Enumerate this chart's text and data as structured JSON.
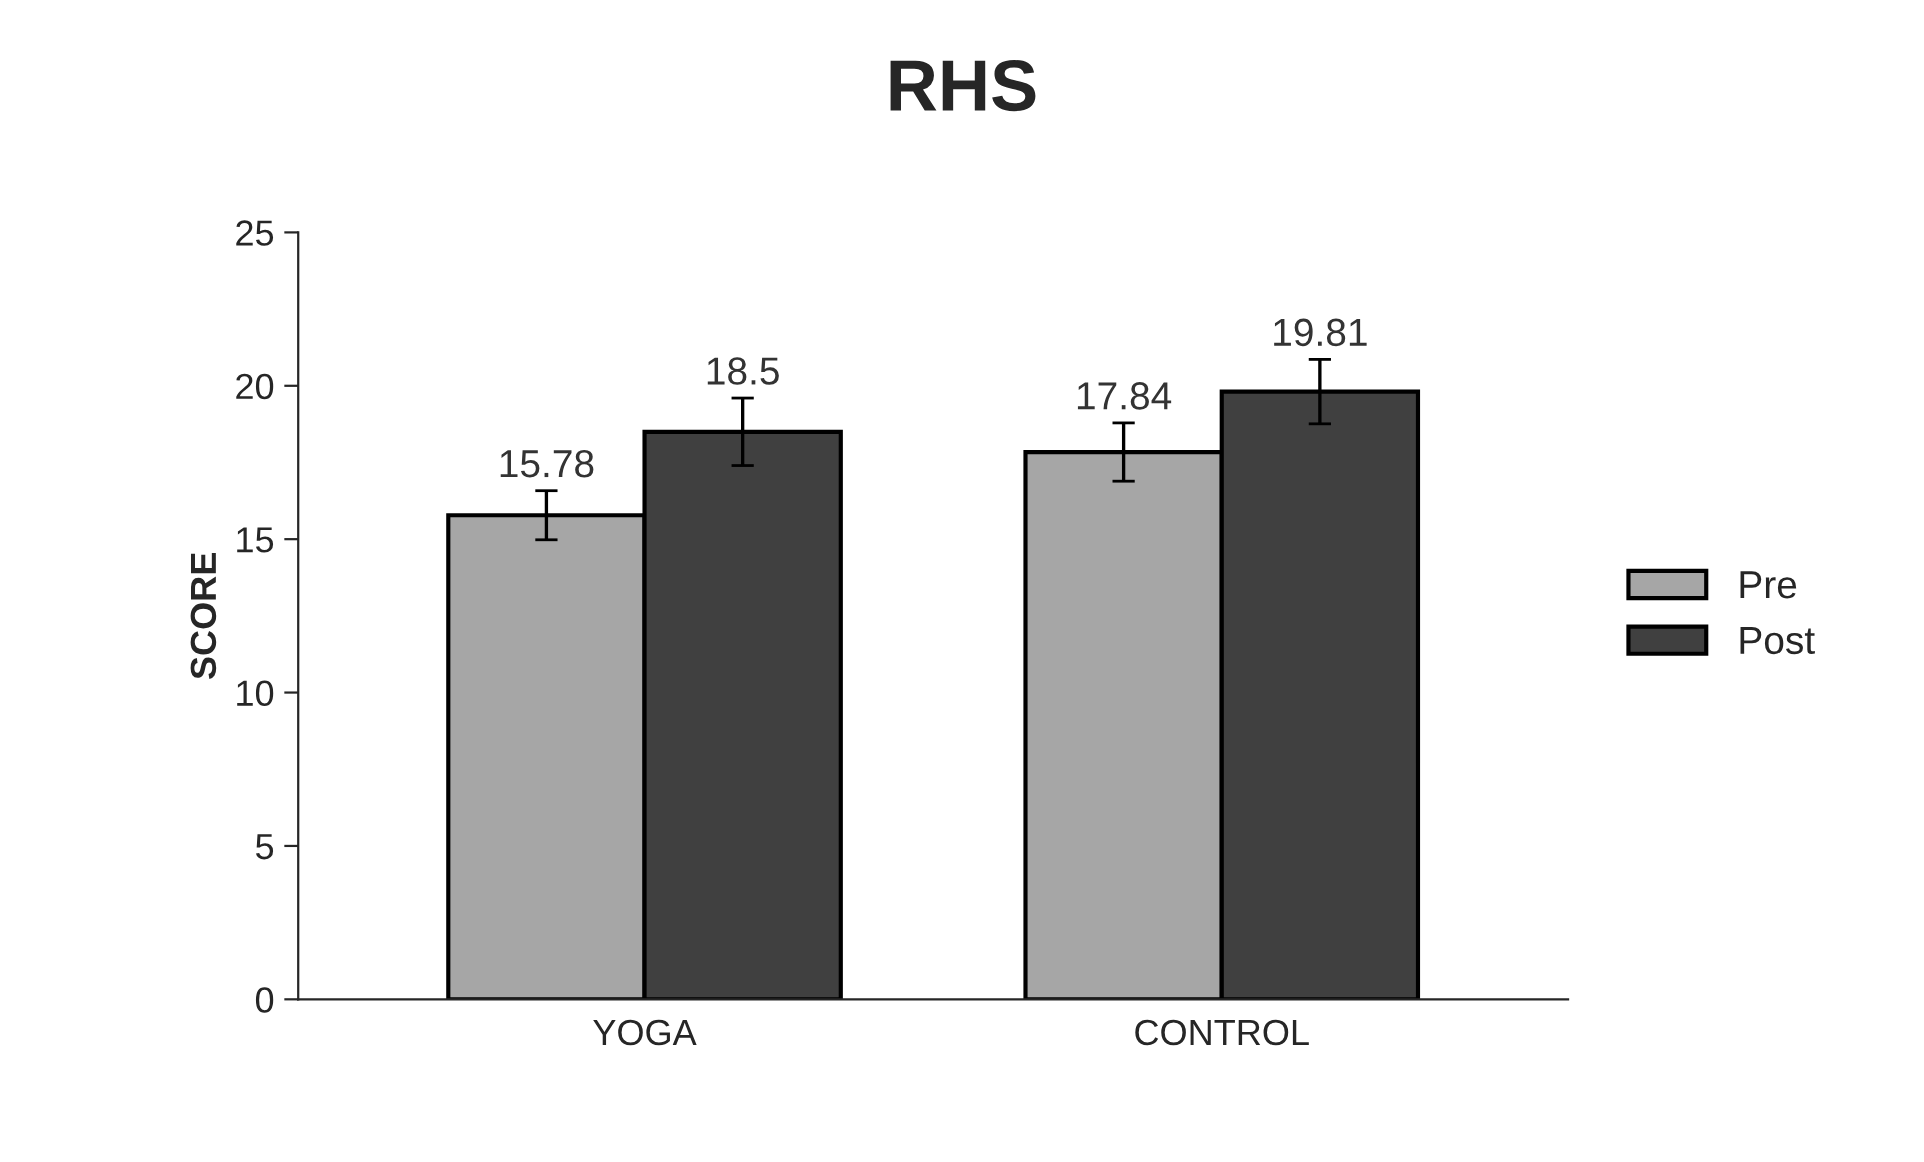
{
  "chart_data": {
    "type": "bar",
    "title": "RHS",
    "ylabel": "SCORE",
    "categories": [
      "YOGA",
      "CONTROL"
    ],
    "series": [
      {
        "name": "Pre",
        "color": "#a6a6a6",
        "values": [
          15.78,
          17.84
        ],
        "errors": [
          0.8,
          0.95
        ]
      },
      {
        "name": "Post",
        "color": "#404040",
        "values": [
          18.5,
          19.81
        ],
        "errors": [
          1.1,
          1.05
        ]
      }
    ],
    "ylim": [
      0,
      25
    ],
    "yticks": [
      0,
      5,
      10,
      15,
      20,
      25
    ],
    "data_labels": true,
    "legend": "right",
    "grid": false
  }
}
